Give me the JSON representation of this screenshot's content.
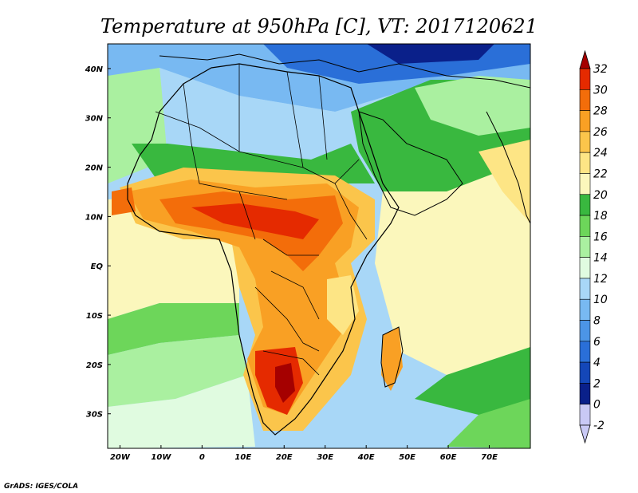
{
  "title": "Temperature at 950hPa [C], VT: 2017120621",
  "credit": "GrADS: IGES/COLA",
  "map": {
    "lon_range": [
      -23,
      80
    ],
    "lat_range": [
      -37,
      45
    ],
    "lon_ticks": [
      {
        "value": -20,
        "label": "20W"
      },
      {
        "value": -10,
        "label": "10W"
      },
      {
        "value": 0,
        "label": "0"
      },
      {
        "value": 10,
        "label": "10E"
      },
      {
        "value": 20,
        "label": "20E"
      },
      {
        "value": 30,
        "label": "30E"
      },
      {
        "value": 40,
        "label": "40E"
      },
      {
        "value": 50,
        "label": "50E"
      },
      {
        "value": 60,
        "label": "60E"
      },
      {
        "value": 70,
        "label": "70E"
      }
    ],
    "lat_ticks": [
      {
        "value": 40,
        "label": "40N"
      },
      {
        "value": 30,
        "label": "30N"
      },
      {
        "value": 20,
        "label": "20N"
      },
      {
        "value": 10,
        "label": "10N"
      },
      {
        "value": 0,
        "label": "EQ"
      },
      {
        "value": -10,
        "label": "10S"
      },
      {
        "value": -20,
        "label": "20S"
      },
      {
        "value": -30,
        "label": "30S"
      }
    ]
  },
  "colorbar": {
    "levels": [
      {
        "label": "32",
        "color": "#a50000"
      },
      {
        "label": "30",
        "color": "#e52a00"
      },
      {
        "label": "28",
        "color": "#f36d0a"
      },
      {
        "label": "26",
        "color": "#f9a024"
      },
      {
        "label": "24",
        "color": "#fbc54b"
      },
      {
        "label": "22",
        "color": "#fde585"
      },
      {
        "label": "20",
        "color": "#fbf7bc"
      },
      {
        "label": "18",
        "color": "#39b83f"
      },
      {
        "label": "16",
        "color": "#6dd65a"
      },
      {
        "label": "14",
        "color": "#aaf0a0"
      },
      {
        "label": "12",
        "color": "#e0fbe0"
      },
      {
        "label": "10",
        "color": "#a8d7f7"
      },
      {
        "label": "8",
        "color": "#78b9f2"
      },
      {
        "label": "6",
        "color": "#4c95e6"
      },
      {
        "label": "4",
        "color": "#2a6fd8"
      },
      {
        "label": "2",
        "color": "#1447b8"
      },
      {
        "label": "0",
        "color": "#0a208a"
      },
      {
        "label": "-2",
        "color": "#c9c9f5"
      }
    ],
    "top_color": "#a50000",
    "bottom_color": "#c9c9f5"
  }
}
